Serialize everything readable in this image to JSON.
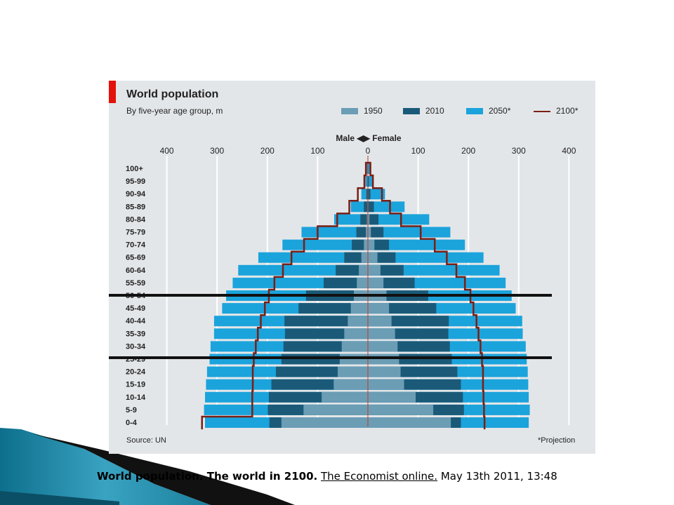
{
  "chart_data": {
    "type": "bar",
    "title": "World population",
    "subtitle": "By five-year age group, m",
    "axis_heading_left": "Male",
    "axis_heading_right": "Female",
    "x_ticks": [
      400,
      300,
      200,
      100,
      0,
      100,
      200,
      300,
      400
    ],
    "xlim": [
      -400,
      400
    ],
    "categories": [
      "100+",
      "95-99",
      "90-94",
      "85-89",
      "80-84",
      "75-79",
      "70-74",
      "65-69",
      "60-64",
      "55-59",
      "50-54",
      "45-49",
      "40-44",
      "35-39",
      "30-34",
      "25-29",
      "20-24",
      "15-19",
      "10-14",
      "5-9",
      "0-4"
    ],
    "series": [
      {
        "name": "1950",
        "color": "#6b9db5",
        "male": [
          0,
          0,
          0,
          1,
          2,
          4,
          8,
          13,
          18,
          22,
          28,
          34,
          40,
          47,
          52,
          56,
          60,
          68,
          92,
          128,
          172
        ],
        "female": [
          0,
          0,
          0,
          1,
          3,
          6,
          13,
          19,
          25,
          31,
          37,
          42,
          47,
          54,
          59,
          62,
          65,
          72,
          95,
          130,
          165
        ]
      },
      {
        "name": "2010",
        "color": "#1a5a78",
        "male": [
          0,
          1,
          3,
          8,
          15,
          23,
          32,
          47,
          64,
          88,
          123,
          138,
          166,
          165,
          168,
          172,
          183,
          192,
          197,
          199,
          196
        ],
        "female": [
          0,
          2,
          5,
          12,
          21,
          31,
          42,
          55,
          71,
          93,
          120,
          136,
          161,
          160,
          163,
          167,
          178,
          185,
          189,
          191,
          185
        ]
      },
      {
        "name": "2050*",
        "color": "#1ba3dc",
        "male": [
          3,
          5,
          13,
          34,
          67,
          132,
          170,
          218,
          258,
          269,
          282,
          290,
          306,
          306,
          313,
          315,
          320,
          322,
          324,
          326,
          324
        ],
        "female": [
          4,
          11,
          34,
          73,
          122,
          164,
          193,
          230,
          262,
          274,
          286,
          294,
          307,
          308,
          314,
          316,
          318,
          319,
          320,
          322,
          320
        ]
      },
      {
        "name": "2100*",
        "color": "#7a1f14",
        "male": [
          4,
          7,
          20,
          37,
          61,
          100,
          127,
          152,
          169,
          186,
          197,
          205,
          213,
          219,
          223,
          227,
          229,
          229,
          230,
          230,
          330
        ],
        "female": [
          5,
          10,
          28,
          44,
          66,
          105,
          133,
          157,
          176,
          193,
          204,
          210,
          216,
          220,
          224,
          227,
          229,
          229,
          230,
          231,
          232
        ]
      }
    ],
    "legend_position": "top-right",
    "grid": true,
    "source": "Source: UN",
    "footnote": "*Projection"
  },
  "caption": {
    "title_bold": "World population. The world in 2100.",
    "link_text": "The Economist online.",
    "date_text": "May 13th 2011, 13:48"
  }
}
